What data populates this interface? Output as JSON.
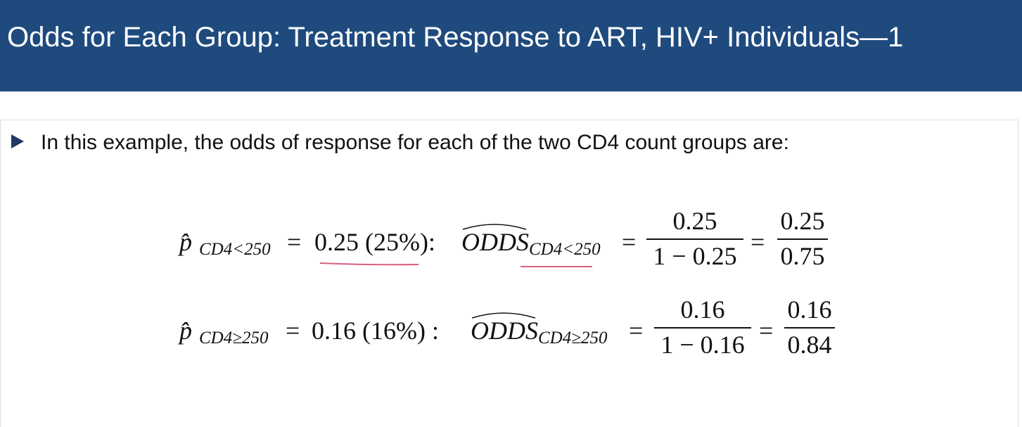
{
  "header": {
    "title": "Odds for Each Group: Treatment Response to ART, HIV+ Individuals—1"
  },
  "bullet": {
    "text": "In this example, the odds of response for each of the two CD4 count groups are:"
  },
  "equations": [
    {
      "p_symbol": "p̂",
      "p_subscript": "CD4<250",
      "relation": "=",
      "proportion": "0.25 (25%):",
      "odds_symbol": "ODDS",
      "odds_subscript": "CD4<250",
      "fraction_1": {
        "numerator": "0.25",
        "denominator": "1 − 0.25"
      },
      "fraction_2": {
        "numerator": "0.25",
        "denominator": "0.75"
      }
    },
    {
      "p_symbol": "p̂",
      "p_subscript": "CD4≥250",
      "relation": "=",
      "proportion": "0.16 (16%) :",
      "odds_symbol": "ODDS",
      "odds_subscript": "CD4≥250",
      "fraction_1": {
        "numerator": "0.16",
        "denominator": "1 − 0.16"
      },
      "fraction_2": {
        "numerator": "0.16",
        "denominator": "0.84"
      }
    }
  ]
}
